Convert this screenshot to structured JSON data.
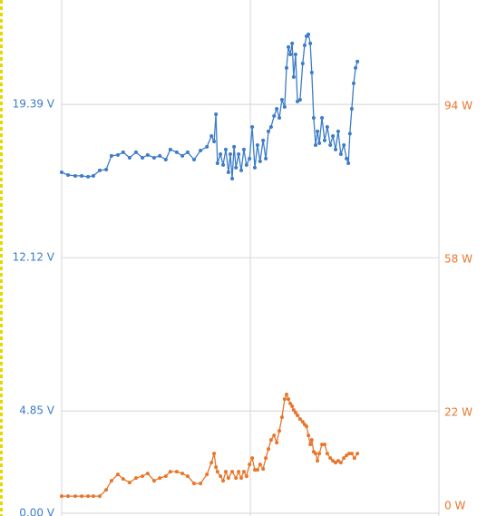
{
  "chart_data": {
    "type": "line",
    "xlim": [
      0,
      100
    ],
    "xticks": [
      0,
      50,
      100
    ],
    "ylim": [
      0,
      24.34
    ],
    "yticks": [
      {
        "value": 0,
        "label": "0.00 V"
      },
      {
        "value": 4.85,
        "label": "4.85 V"
      },
      {
        "value": 12.12,
        "label": "12.12 V"
      },
      {
        "value": 19.39,
        "label": "19.39 V"
      }
    ],
    "y2lim": [
      -2.1,
      118.5
    ],
    "y2ticks": [
      {
        "value": 0,
        "label": "0 W"
      },
      {
        "value": 22,
        "label": "22 W"
      },
      {
        "value": 58,
        "label": "58 W"
      },
      {
        "value": 94,
        "label": "94 W"
      }
    ],
    "grid": true,
    "series": [
      {
        "color": "#3d7cc9",
        "axis": "y",
        "x": [
          0,
          1.7,
          3.6,
          5.3,
          7.0,
          8.4,
          10.1,
          11.8,
          13.2,
          14.9,
          16.3,
          18.0,
          19.7,
          21.4,
          22.8,
          24.5,
          26.0,
          27.6,
          28.8,
          30.5,
          32.0,
          33.4,
          35.1,
          36.8,
          38.5,
          39.7,
          40.4,
          40.9,
          41.3,
          42.1,
          42.8,
          43.5,
          44.2,
          44.7,
          45.2,
          45.7,
          46.2,
          46.9,
          47.6,
          48.3,
          49.0,
          49.8,
          50.5,
          51.2,
          51.9,
          52.6,
          53.4,
          54.1,
          54.8,
          55.5,
          56.3,
          57.0,
          57.7,
          58.4,
          59.1,
          59.6,
          60.1,
          60.6,
          61.1,
          61.5,
          62.0,
          62.5,
          63.2,
          63.9,
          64.4,
          64.9,
          65.4,
          65.9,
          66.3,
          66.8,
          67.3,
          67.8,
          68.3,
          69.0,
          69.7,
          70.4,
          71.2,
          71.9,
          72.6,
          73.3,
          74.0,
          74.8,
          75.5,
          76.0,
          76.4,
          76.9,
          77.4,
          77.9,
          78.4
        ],
        "values": [
          16.17,
          16.04,
          16.0,
          16.0,
          15.96,
          16.0,
          16.26,
          16.3,
          16.95,
          16.99,
          17.12,
          16.86,
          17.12,
          16.86,
          16.99,
          16.86,
          16.95,
          16.77,
          17.25,
          17.12,
          16.95,
          17.12,
          16.77,
          17.2,
          17.38,
          17.89,
          17.63,
          18.92,
          16.6,
          17.03,
          16.52,
          17.25,
          16.17,
          17.03,
          15.87,
          17.38,
          16.39,
          17.03,
          16.26,
          17.25,
          16.52,
          16.82,
          18.32,
          16.39,
          17.46,
          16.69,
          17.68,
          16.82,
          18.11,
          18.32,
          18.84,
          19.18,
          18.75,
          19.61,
          19.27,
          21.12,
          22.11,
          21.76,
          22.28,
          20.69,
          21.76,
          19.53,
          19.61,
          21.33,
          22.19,
          22.62,
          22.71,
          22.28,
          20.9,
          18.75,
          17.46,
          18.11,
          17.55,
          18.75,
          17.68,
          18.32,
          17.46,
          17.89,
          17.25,
          18.11,
          17.03,
          17.46,
          16.82,
          16.6,
          18.0,
          19.18,
          20.39,
          21.12,
          21.42
        ]
      },
      {
        "color": "#e8762c",
        "axis": "y2",
        "x": [
          0,
          1.7,
          3.6,
          5.3,
          7.0,
          8.4,
          10.1,
          11.8,
          13.2,
          14.9,
          16.3,
          18.0,
          19.7,
          21.4,
          22.8,
          24.5,
          26.0,
          27.6,
          28.8,
          30.5,
          32.0,
          33.4,
          35.1,
          36.8,
          38.5,
          39.7,
          40.4,
          40.9,
          41.3,
          42.1,
          42.8,
          43.5,
          44.2,
          45.2,
          46.2,
          46.9,
          47.6,
          48.3,
          49.0,
          49.8,
          50.5,
          51.2,
          51.9,
          52.6,
          53.4,
          54.1,
          54.8,
          55.5,
          56.3,
          57.0,
          57.7,
          58.4,
          59.1,
          59.6,
          60.1,
          60.6,
          61.1,
          61.5,
          62.0,
          62.5,
          63.2,
          63.9,
          64.4,
          64.9,
          65.4,
          65.9,
          66.3,
          66.8,
          67.3,
          67.8,
          68.3,
          69.0,
          69.7,
          70.4,
          71.2,
          71.9,
          72.6,
          73.3,
          74.0,
          74.8,
          75.5,
          76.2,
          76.9,
          77.6,
          78.4
        ],
        "values": [
          1.92,
          1.92,
          1.92,
          1.92,
          1.92,
          1.92,
          1.92,
          3.41,
          5.54,
          7.04,
          5.97,
          5.12,
          6.18,
          6.61,
          7.25,
          5.54,
          6.18,
          6.61,
          7.68,
          7.68,
          7.25,
          6.61,
          4.9,
          4.9,
          7.04,
          9.81,
          11.94,
          8.74,
          7.68,
          6.61,
          5.54,
          7.68,
          6.18,
          7.68,
          6.18,
          7.68,
          6.18,
          7.68,
          6.61,
          9.38,
          10.87,
          8.1,
          8.1,
          9.38,
          8.32,
          10.87,
          13.01,
          15.14,
          16.2,
          14.5,
          17.27,
          20.47,
          24.73,
          25.8,
          24.73,
          23.67,
          23.03,
          22.17,
          21.54,
          20.9,
          20.04,
          19.4,
          18.76,
          18.34,
          16.2,
          14.07,
          15.14,
          12.37,
          11.94,
          10.23,
          11.94,
          14.07,
          14.07,
          11.94,
          10.87,
          10.23,
          9.81,
          10.23,
          9.81,
          10.87,
          11.51,
          11.94,
          11.94,
          10.87,
          11.94
        ]
      }
    ]
  }
}
